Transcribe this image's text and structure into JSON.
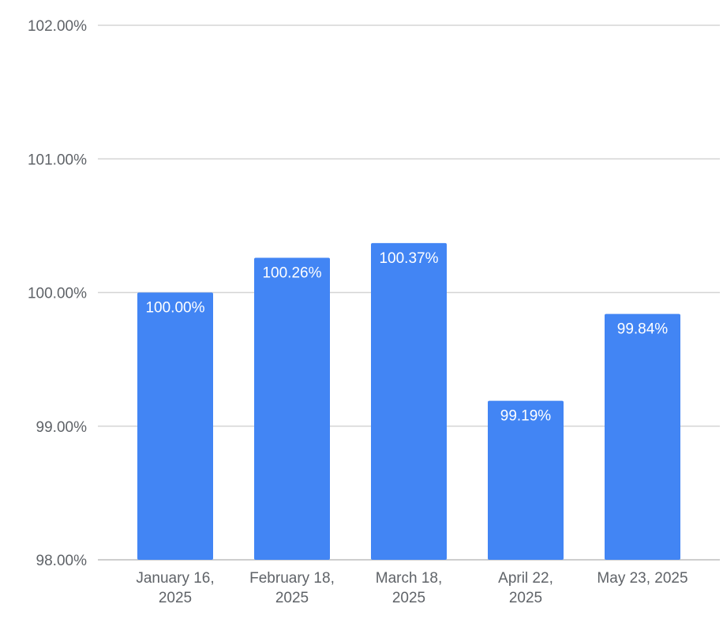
{
  "chart_data": {
    "type": "bar",
    "title": "",
    "xlabel": "",
    "ylabel": "",
    "categories": [
      [
        "January 16,",
        "2025"
      ],
      [
        "February 18,",
        "2025"
      ],
      [
        "March 18,",
        "2025"
      ],
      [
        "April 22,",
        "2025"
      ],
      [
        "May 23, 2025"
      ]
    ],
    "values": [
      100.0,
      100.26,
      100.37,
      99.19,
      99.84
    ],
    "data_labels": [
      "100.00%",
      "100.26%",
      "100.37%",
      "99.19%",
      "99.84%"
    ],
    "ylim": [
      98,
      102
    ],
    "y_ticks": [
      98,
      99,
      100,
      101,
      102
    ],
    "y_tick_labels": [
      "98.00%",
      "99.00%",
      "100.00%",
      "101.00%",
      "102.00%"
    ],
    "grid": true,
    "legend": "none",
    "colors": {
      "bar": "#4285f4",
      "grid": "#d5d5d5",
      "tick_text": "#5f6368",
      "data_label": "#ffffff"
    }
  }
}
